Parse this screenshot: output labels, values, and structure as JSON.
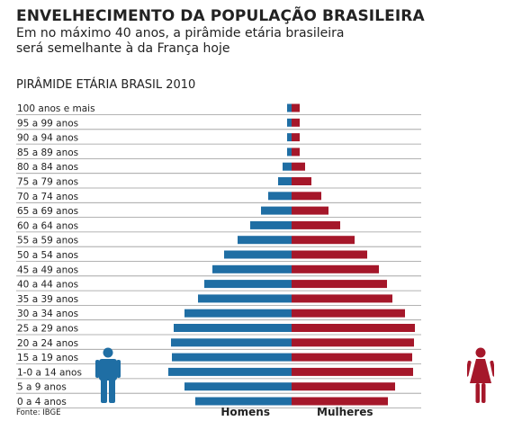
{
  "headline": "ENVELHECIMENTO DA POPULAÇÃO BRASILEIRA",
  "subhead": "Em no máximo 40 anos, a pirâmide etária brasileira será semelhante à da França hoje",
  "source": "Fonte: IBGE",
  "colors": {
    "men": "#1f6ea4",
    "women": "#a5172a",
    "grid": "#9a9a9a"
  },
  "icons": {
    "men": "man-figure-icon",
    "women": "woman-figure-icon"
  },
  "chart_data": {
    "type": "bar",
    "orientation": "horizontal-mirrored",
    "title": "PIRÂMIDE ETÁRIA  BRASIL 2010",
    "categories": [
      "100 anos e mais",
      "95 a 99 anos",
      "90 a 94 anos",
      "85 a 89 anos",
      "80 a 84 anos",
      "75 a 79 anos",
      "70 a 74 anos",
      "65 a 69 anos",
      "60 a 64 anos",
      "55 a 59 anos",
      "50 a 54 anos",
      "45 a 49 anos",
      "40 a 44 anos",
      "35 a 39 anos",
      "30 a 34 anos",
      "25 a 29 anos",
      "20 a 24 anos",
      "15 a 19 anos",
      "1-0 a 14 anos",
      "5 a 9 anos",
      "0 a 4 anos"
    ],
    "series": [
      {
        "name": "Homens",
        "values": [
          5,
          5,
          5,
          5,
          10,
          15,
          26,
          34,
          46,
          60,
          75,
          88,
          97,
          104,
          119,
          131,
          134,
          133,
          137,
          119,
          107
        ]
      },
      {
        "name": "Mulheres",
        "values": [
          9,
          9,
          9,
          9,
          15,
          22,
          33,
          41,
          54,
          70,
          84,
          97,
          106,
          112,
          126,
          137,
          136,
          134,
          135,
          115,
          107
        ]
      }
    ],
    "xlim": [
      0,
      140
    ],
    "grid": true,
    "legend": "bottom-center"
  }
}
